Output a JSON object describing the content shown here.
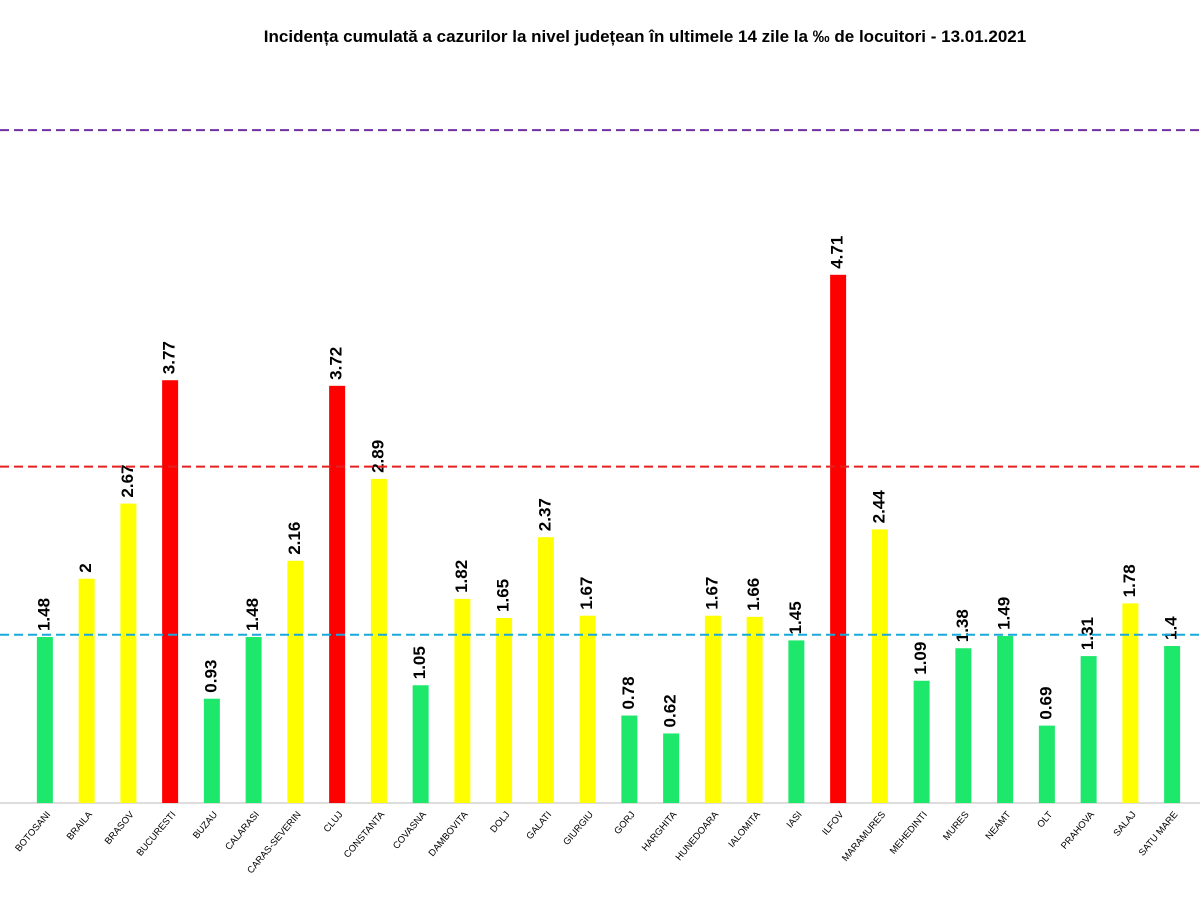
{
  "chart_data": {
    "type": "bar",
    "title": "Incidența cumulată a cazurilor la nivel județean în ultimele 14 zile la ‰ de locuitori - 13.01.2021",
    "categories": [
      "BOTOSANI",
      "BRAILA",
      "BRASOV",
      "BUCURESTI",
      "BUZAU",
      "CALARASI",
      "CARAS-SEVERIN",
      "CLUJ",
      "CONSTANTA",
      "COVASNA",
      "DAMBOVITA",
      "DOLJ",
      "GALATI",
      "GIURGIU",
      "GORJ",
      "HARGHITA",
      "HUNEDOARA",
      "IALOMITA",
      "IASI",
      "ILFOV",
      "MARAMURES",
      "MEHEDINTI",
      "MURES",
      "NEAMT",
      "OLT",
      "PRAHOVA",
      "SALAJ",
      "SATU MARE"
    ],
    "values": [
      1.48,
      2,
      2.67,
      3.77,
      0.93,
      1.48,
      2.16,
      3.72,
      2.89,
      1.05,
      1.82,
      1.65,
      2.37,
      1.67,
      0.78,
      0.62,
      1.67,
      1.66,
      1.45,
      4.71,
      2.44,
      1.09,
      1.38,
      1.49,
      0.69,
      1.31,
      1.78,
      1.4
    ],
    "colors": [
      "#1ee86c",
      "#ffff00",
      "#ffff00",
      "#ff0000",
      "#1ee86c",
      "#1ee86c",
      "#ffff00",
      "#ff0000",
      "#ffff00",
      "#1ee86c",
      "#ffff00",
      "#ffff00",
      "#ffff00",
      "#ffff00",
      "#1ee86c",
      "#1ee86c",
      "#ffff00",
      "#ffff00",
      "#1ee86c",
      "#ff0000",
      "#ffff00",
      "#1ee86c",
      "#1ee86c",
      "#1ee86c",
      "#1ee86c",
      "#1ee86c",
      "#ffff00",
      "#1ee86c"
    ],
    "ylim": [
      0,
      7
    ],
    "reference_lines": [
      {
        "value": 1.5,
        "color": "#1aa7d9"
      },
      {
        "value": 3,
        "color": "#e52020"
      },
      {
        "value": 6,
        "color": "#7030a0"
      }
    ]
  }
}
